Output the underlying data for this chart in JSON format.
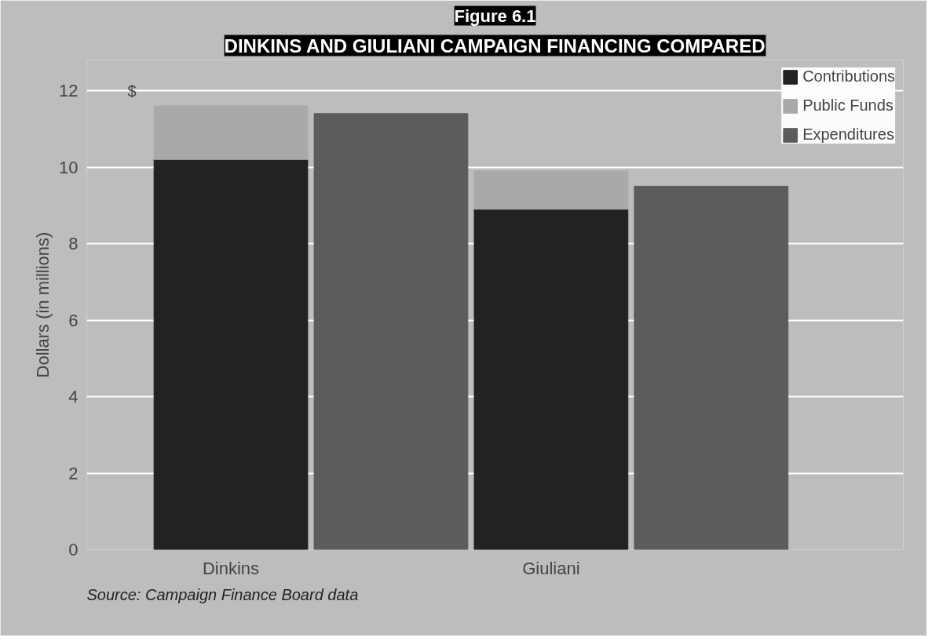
{
  "chart_data": {
    "type": "bar",
    "title": "Figure 6.1",
    "subtitle": "DINKINS AND GIULIANI CAMPAIGN FINANCING COMPARED",
    "ylabel": "Dollars (in millions)",
    "categories": [
      "Dinkins",
      null,
      "Giuliani",
      null
    ],
    "stacked": true,
    "series": [
      {
        "name": "Contributions",
        "color": "#222222",
        "values": [
          10.2,
          null,
          8.9,
          null
        ]
      },
      {
        "name": "Public Funds",
        "color": "#a9a9a9",
        "values": [
          1.4,
          null,
          1.0,
          null
        ]
      },
      {
        "name": "Expenditures",
        "color": "#5c5c5c",
        "values": [
          null,
          11.4,
          null,
          9.5
        ]
      }
    ],
    "ylim": [
      0,
      12.8
    ],
    "yticks": [
      0,
      2,
      4,
      6,
      8,
      10,
      12
    ],
    "grid": "y",
    "legend": "top right",
    "annotations": [
      "$",
      "Source: Campaign Finance Board data"
    ]
  }
}
